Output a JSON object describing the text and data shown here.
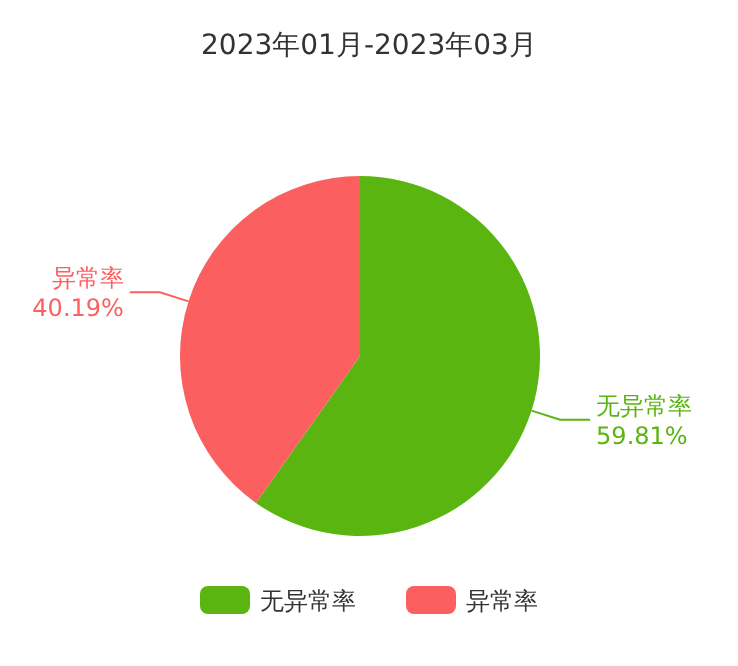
{
  "chart_data": {
    "type": "pie",
    "title": "2023年01月-2023年03月",
    "categories": [
      "无异常率",
      "异常率"
    ],
    "values": [
      59.81,
      40.19
    ],
    "value_labels": [
      "59.81%",
      "40.19%"
    ],
    "colors": [
      "#5ab510",
      "#fb5f5f"
    ],
    "legend": "bottom"
  }
}
